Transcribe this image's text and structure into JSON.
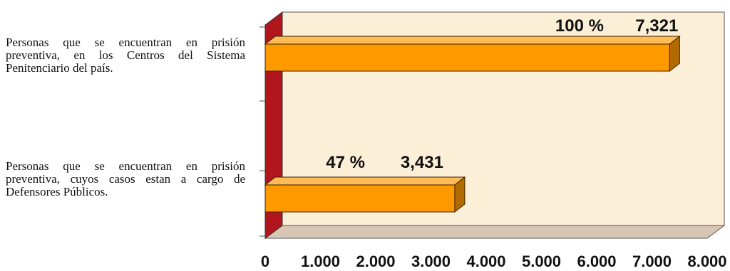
{
  "chart_data": {
    "type": "bar",
    "orientation": "horizontal",
    "style": "3d",
    "categories": [
      "Personas que se encuentran  en prisión preventiva, en los Centros del Sistema Penitenciario del país.",
      "Personas que se encuentran en prisión preventiva, cuyos casos estan a cargo de Defensores Públicos."
    ],
    "values": [
      7321,
      3431
    ],
    "value_labels": [
      "7,321",
      "3,431"
    ],
    "percent_labels": [
      "100 %",
      "47 %"
    ],
    "xlim": [
      0,
      8000
    ],
    "x_tick_labels": [
      "0",
      "1.000",
      "2.000",
      "3.000",
      "4.000",
      "5.000",
      "6.000",
      "7.000",
      "8.000"
    ],
    "title": "",
    "xlabel": "",
    "ylabel": "",
    "grid": false,
    "legend": "none",
    "colors": {
      "bar_front": "#ff9900",
      "bar_top": "#ffbb55",
      "bar_side": "#b36b00",
      "back_wall": "#fcefd8",
      "floor": "#d8c6b4",
      "side_wall": "#b0161c"
    }
  }
}
